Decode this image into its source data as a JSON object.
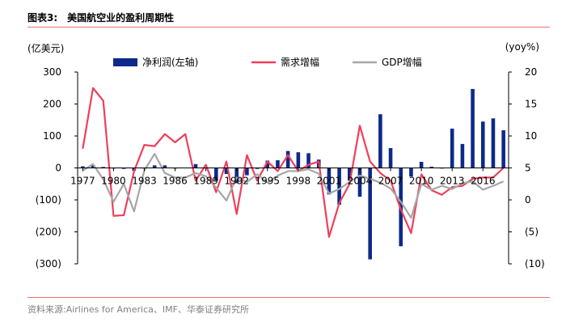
{
  "header": {
    "label": "图表3:",
    "title": "美国航空业的盈利周期性"
  },
  "source": "资料来源:Airlines for America、IMF、华泰证券研究所",
  "colors": {
    "profit": "#0d2a8a",
    "demand": "#ef3f5a",
    "gdp": "#a6a6a6",
    "rule": "#e8716f"
  },
  "chart_data": {
    "type": "bar",
    "title": "美国航空业的盈利周期性",
    "left_axis_unit": "(亿美元)",
    "right_axis_unit": "(yoy%)",
    "ylim_left": [
      -300,
      300
    ],
    "ylim_right": [
      -10,
      20
    ],
    "yticks_left": [
      "300",
      "200",
      "100",
      "0",
      "(100)",
      "(200)",
      "(300)"
    ],
    "yticks_right": [
      "20",
      "15",
      "10",
      "5",
      "0",
      "(5)",
      "(10)"
    ],
    "xtick_labels": [
      "1977",
      "1980",
      "1983",
      "1986",
      "1989",
      "1992",
      "1995",
      "1998",
      "2001",
      "2004",
      "2007",
      "2010",
      "2013",
      "2016"
    ],
    "legend": [
      "净利润(左轴)",
      "需求增幅",
      "GDP增幅"
    ],
    "legend_position": "top",
    "grid": false,
    "categories": [
      "1977",
      "1978",
      "1979",
      "1980",
      "1981",
      "1982",
      "1983",
      "1984",
      "1985",
      "1986",
      "1987",
      "1988",
      "1989",
      "1990",
      "1991",
      "1992",
      "1993",
      "1994",
      "1995",
      "1996",
      "1997",
      "1998",
      "1999",
      "2000",
      "2001",
      "2002",
      "2003",
      "2004",
      "2005",
      "2006",
      "2007",
      "2008",
      "2009",
      "2010",
      "2011",
      "2012",
      "2013",
      "2014",
      "2015",
      "2016",
      "2017",
      "2018"
    ],
    "series": [
      {
        "name": "净利润(左轴)",
        "axis": "left",
        "type": "bar",
        "values": [
          5,
          8,
          3,
          -2,
          -3,
          -9,
          -2,
          8,
          8,
          -2,
          1,
          12,
          1,
          -39,
          -19,
          -48,
          -23,
          -3,
          23,
          24,
          53,
          49,
          46,
          26,
          -83,
          -115,
          -40,
          -90,
          -286,
          168,
          62,
          -245,
          -27,
          19,
          4,
          -2,
          123,
          75,
          247,
          145,
          155,
          118
        ]
      },
      {
        "name": "需求增幅",
        "axis": "right",
        "type": "line",
        "values": [
          8,
          17.5,
          15.5,
          -2.5,
          -2.4,
          4.5,
          8.6,
          8.4,
          10.3,
          9,
          10.3,
          3,
          5.5,
          1.2,
          6,
          -2.2,
          7,
          3,
          6,
          4.5,
          7,
          4.5,
          5.5,
          6,
          -5.8,
          -0.5,
          2.5,
          11.6,
          6,
          4.2,
          3,
          -1.5,
          -5.2,
          4,
          1.5,
          0.8,
          2,
          2.2,
          3.3,
          3.5,
          3.5,
          5
        ]
      },
      {
        "name": "GDP增幅",
        "axis": "right",
        "type": "line",
        "values": [
          4.6,
          5.6,
          3.2,
          -0.3,
          2.5,
          -1.8,
          4.6,
          7.2,
          4.2,
          3.5,
          3.5,
          4.2,
          3.7,
          1.9,
          -0.1,
          3.5,
          2.8,
          4.0,
          2.7,
          3.8,
          4.5,
          4.5,
          4.8,
          4.1,
          1.0,
          1.7,
          2.8,
          3.8,
          3.3,
          2.7,
          1.8,
          -0.3,
          -2.8,
          2.5,
          1.6,
          2.2,
          1.7,
          2.6,
          2.9,
          1.6,
          2.2,
          2.9
        ]
      }
    ]
  }
}
